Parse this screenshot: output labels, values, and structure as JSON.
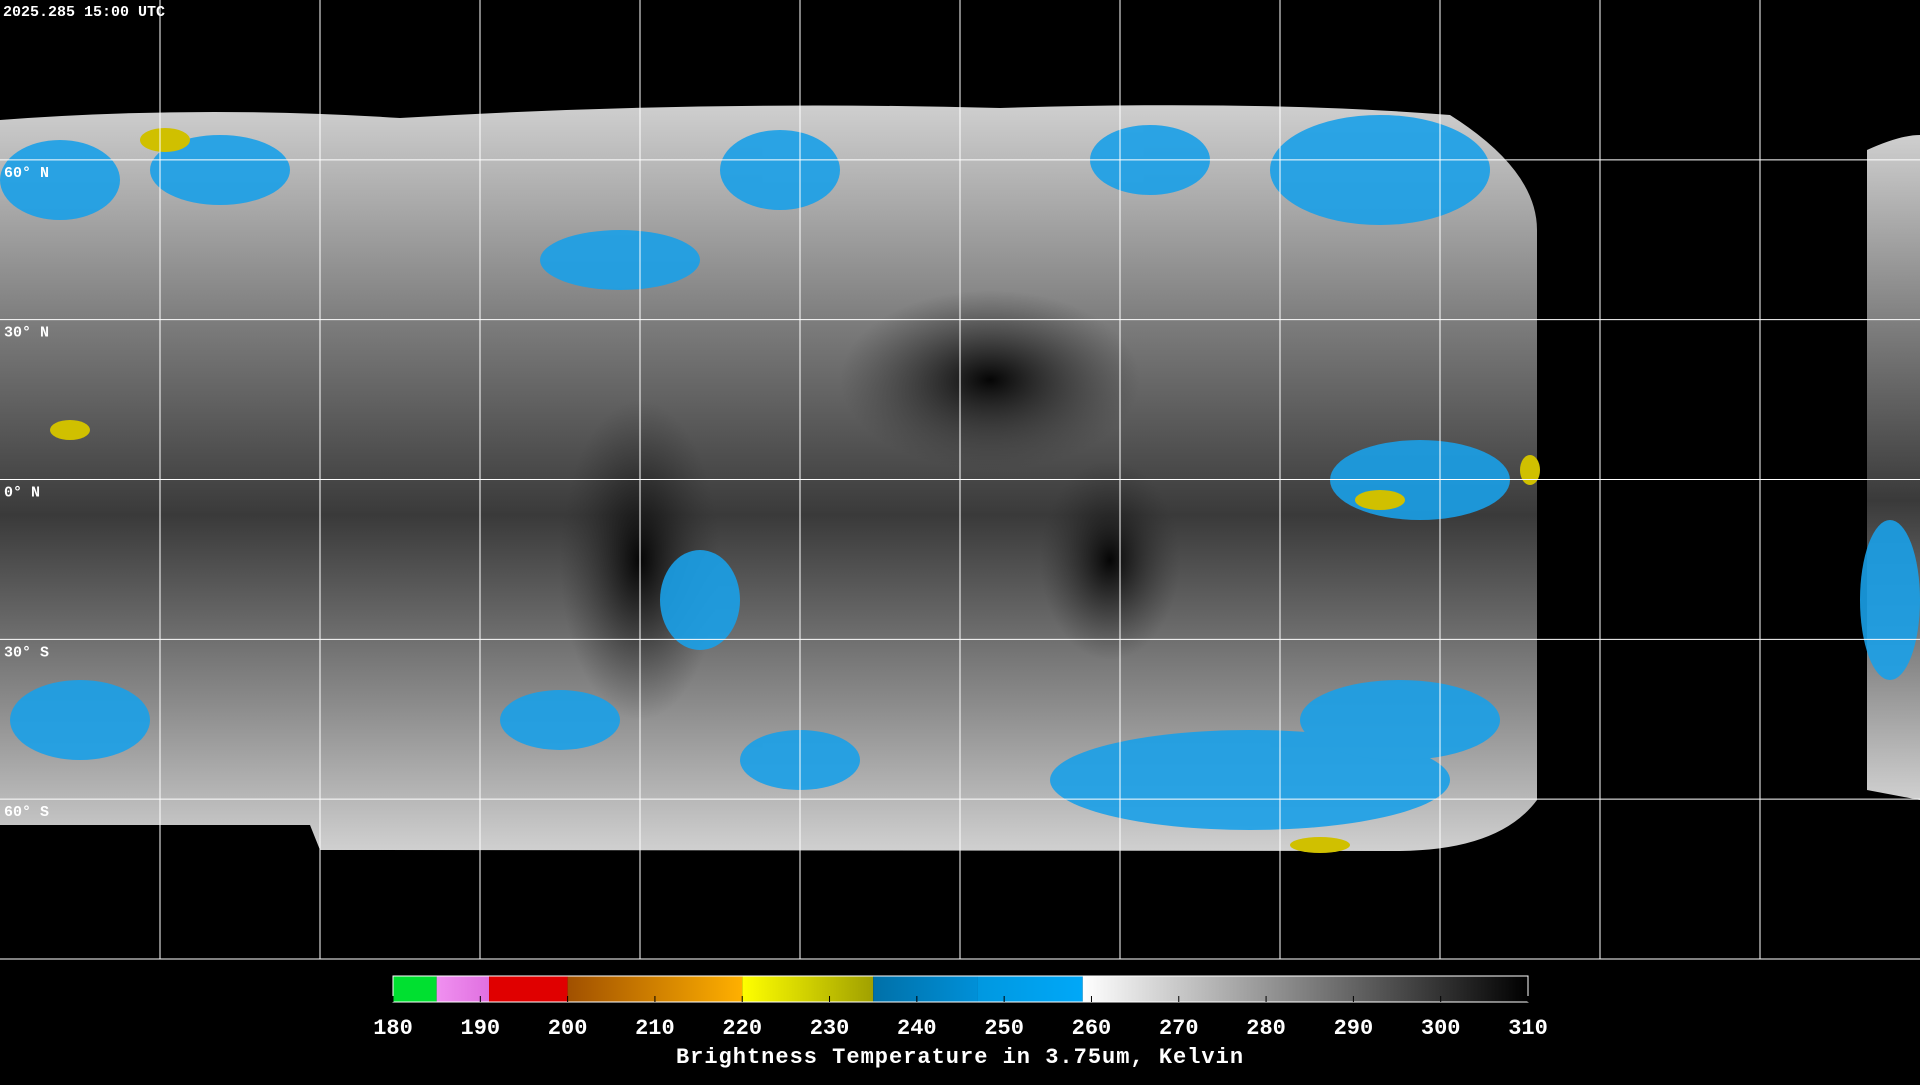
{
  "header": {
    "timestamp": "2025.285 15:00 UTC"
  },
  "map": {
    "lonlim": [
      -180,
      180
    ],
    "latlim": [
      90,
      -90
    ],
    "lon_lines": [
      -150,
      -120,
      -90,
      -60,
      -30,
      0,
      30,
      60,
      90,
      120,
      150
    ],
    "lat_lines": [
      {
        "value": 60,
        "label": "60° N"
      },
      {
        "value": 30,
        "label": "30° N"
      },
      {
        "value": 0,
        "label": "0° N"
      },
      {
        "value": -30,
        "label": "30° S"
      },
      {
        "value": -60,
        "label": "60° S"
      }
    ]
  },
  "colorbar": {
    "range": [
      180,
      310
    ],
    "ticks": [
      180,
      190,
      200,
      210,
      220,
      230,
      240,
      250,
      260,
      270,
      280,
      290,
      300,
      310
    ],
    "segments": [
      {
        "from": 180,
        "to": 185,
        "colors": [
          "#00e030",
          "#00e030"
        ]
      },
      {
        "from": 185,
        "to": 191,
        "colors": [
          "#f090f0",
          "#e070e0"
        ]
      },
      {
        "from": 191,
        "to": 200,
        "colors": [
          "#e00000",
          "#e00000"
        ]
      },
      {
        "from": 200,
        "to": 220,
        "colors": [
          "#a05000",
          "#ffb000"
        ]
      },
      {
        "from": 220,
        "to": 235,
        "colors": [
          "#ffff00",
          "#a0a000"
        ]
      },
      {
        "from": 235,
        "to": 247,
        "colors": [
          "#0070a8",
          "#0090d8"
        ]
      },
      {
        "from": 247,
        "to": 259,
        "colors": [
          "#0098e0",
          "#00a8f8"
        ]
      },
      {
        "from": 259,
        "to": 310,
        "colors": [
          "#ffffff",
          "#000000"
        ]
      }
    ],
    "title": "Brightness Temperature in 3.75um, Kelvin"
  }
}
